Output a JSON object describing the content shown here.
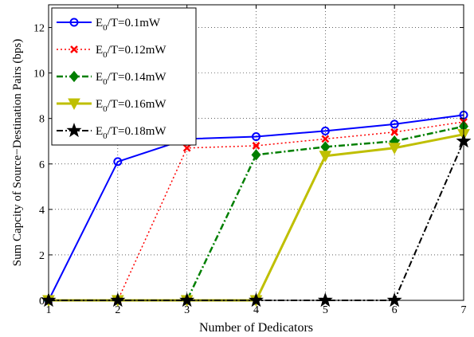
{
  "chart_data": {
    "type": "line",
    "xlabel": "Number of Dedicators",
    "ylabel": "Sum Capcity of Source−Destination Pairs (bps)",
    "xlim": [
      1,
      7
    ],
    "ylim": [
      0,
      13
    ],
    "x_ticks": [
      1,
      2,
      3,
      4,
      5,
      6,
      7
    ],
    "y_ticks": [
      0,
      2,
      4,
      6,
      8,
      10,
      12
    ],
    "grid": true,
    "legend_position": "top-left",
    "x": [
      1,
      2,
      3,
      4,
      5,
      6,
      7
    ],
    "series": [
      {
        "label_main": "E",
        "label_sub": "0",
        "label_rest": "/T=0.1mW",
        "values": [
          0,
          6.1,
          7.1,
          7.2,
          7.45,
          7.75,
          8.15
        ],
        "color": "#0000ff",
        "dash": "solid",
        "marker": "circle"
      },
      {
        "label_main": "E",
        "label_sub": "0",
        "label_rest": "/T=0.12mW",
        "values": [
          0,
          0,
          6.7,
          6.8,
          7.1,
          7.4,
          7.85
        ],
        "color": "#ff0000",
        "dash": "dotted",
        "marker": "x"
      },
      {
        "label_main": "E",
        "label_sub": "0",
        "label_rest": "/T=0.14mW",
        "values": [
          0,
          0,
          0,
          6.4,
          6.75,
          7.0,
          7.65
        ],
        "color": "#007f00",
        "dash": "dashdot",
        "marker": "diamond"
      },
      {
        "label_main": "E",
        "label_sub": "0",
        "label_rest": "/T=0.16mW",
        "values": [
          0,
          0,
          0,
          0,
          6.35,
          6.7,
          7.3
        ],
        "color": "#bfbf00",
        "dash": "solid",
        "marker": "triangle-down"
      },
      {
        "label_main": "E",
        "label_sub": "0",
        "label_rest": "/T=0.18mW",
        "values": [
          0,
          0,
          0,
          0,
          0,
          0,
          7.0
        ],
        "color": "#000000",
        "dash": "dashdot",
        "marker": "star"
      }
    ]
  }
}
